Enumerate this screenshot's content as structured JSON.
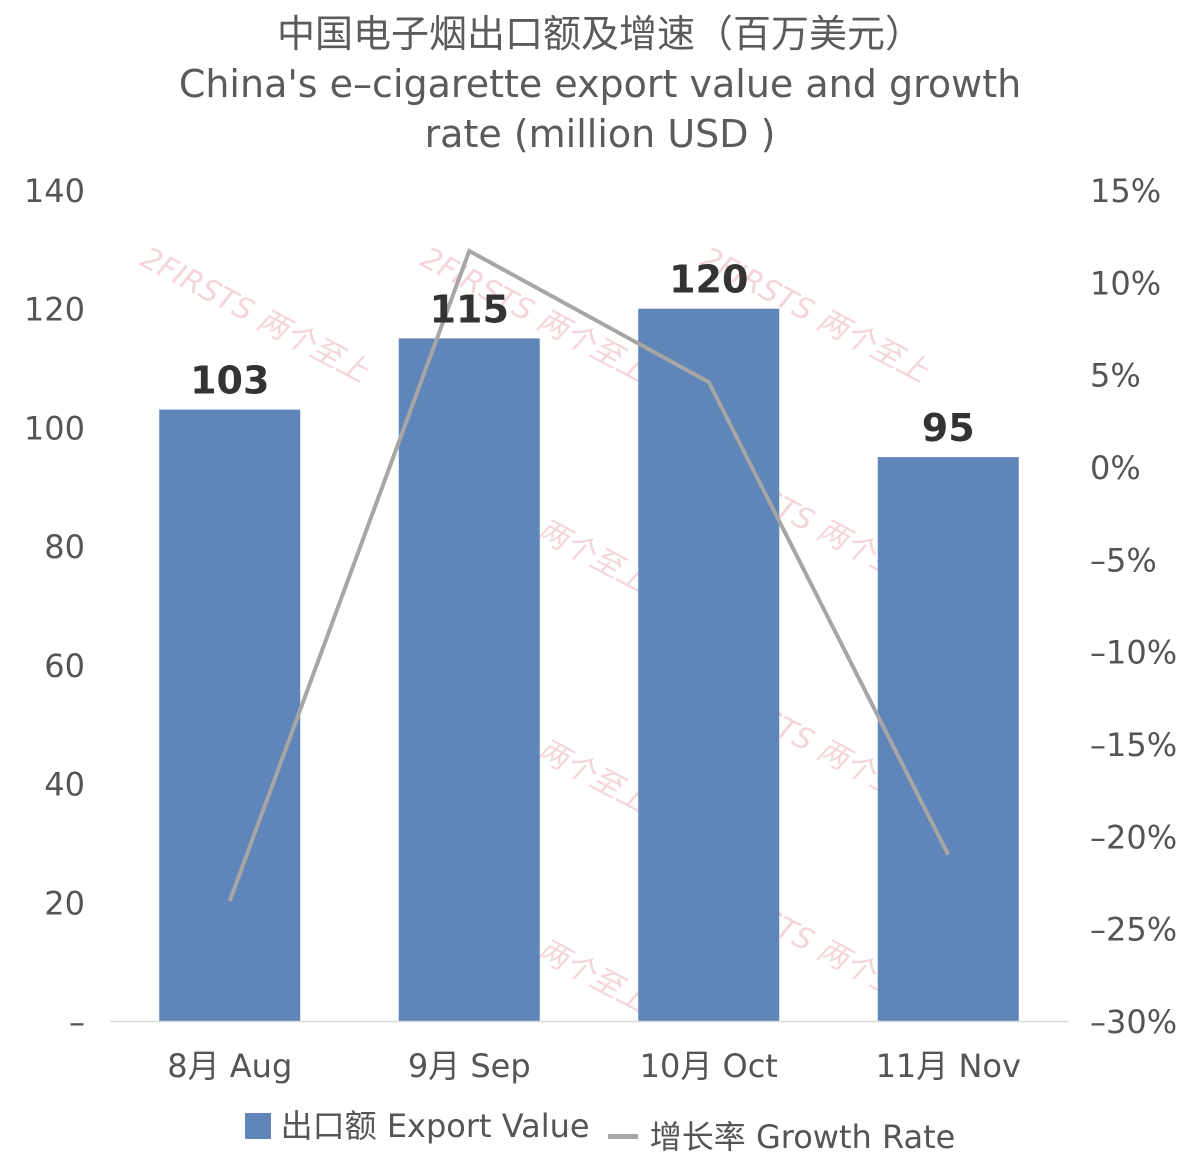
{
  "chart_data": {
    "type": "bar",
    "title_zh": "中国电子烟出口额及增速（百万美元）",
    "title_en_line1": "China's e–cigarette export value and growth",
    "title_en_line2": "rate (million USD )",
    "categories": [
      "8月 Aug",
      "9月 Sep",
      "10月 Oct",
      "11月 Nov"
    ],
    "series": [
      {
        "name": "出口额 Export Value",
        "type": "bar",
        "axis": "left",
        "color": "#6085b8",
        "values": [
          103,
          115,
          120,
          95
        ],
        "labels": [
          "103",
          "115",
          "120",
          "95"
        ]
      },
      {
        "name": "增长率 Growth Rate",
        "type": "line",
        "axis": "right",
        "color": "#a6a6a6",
        "values": [
          -23.5,
          11.7,
          4.6,
          -21.0
        ]
      }
    ],
    "y_left": {
      "min": 0,
      "max": 140,
      "step": 20,
      "ticks": [
        "–",
        "20",
        "40",
        "60",
        "80",
        "100",
        "120",
        "140"
      ]
    },
    "y_right": {
      "min": -30,
      "max": 15,
      "step": 5,
      "ticks": [
        "–30%",
        "–25%",
        "–20%",
        "–15%",
        "–10%",
        "–5%",
        "0%",
        "5%",
        "10%",
        "15%"
      ]
    },
    "grid": false,
    "legend": "bottom"
  },
  "watermark": "2FIRSTS 两个至上"
}
